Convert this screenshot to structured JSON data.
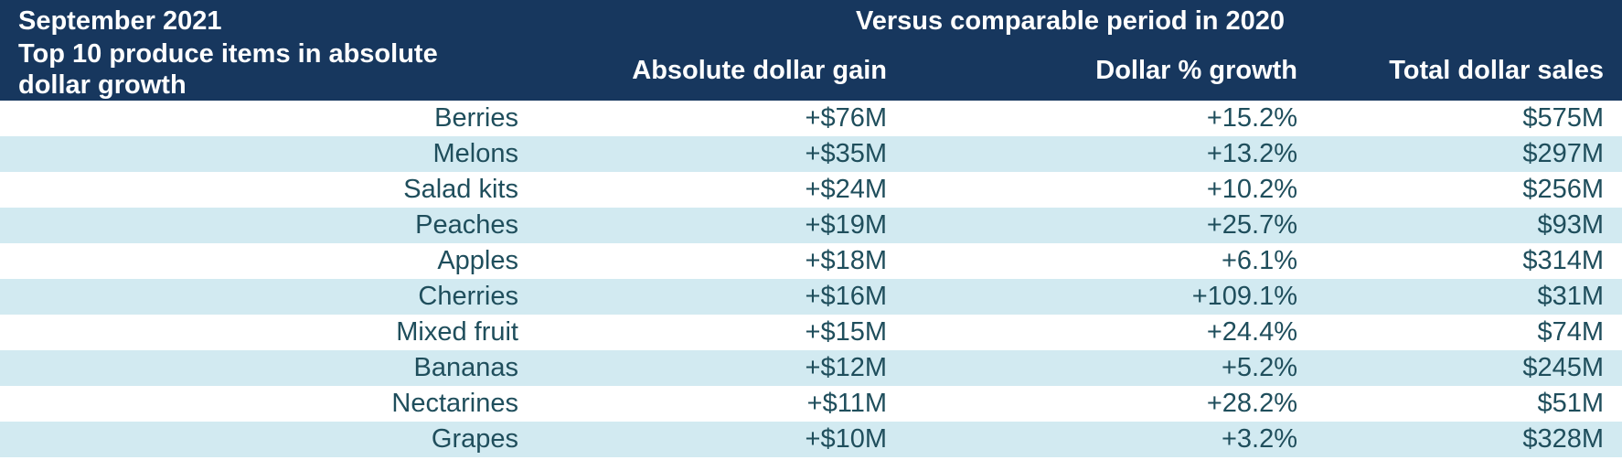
{
  "chart_data": {
    "type": "table",
    "period_label": "September 2021",
    "title": "Top 10 produce items in absolute dollar growth",
    "group_header": "Versus comparable period in 2020",
    "columns": [
      "Absolute dollar gain",
      "Dollar % growth",
      "Total dollar sales"
    ],
    "rows": [
      {
        "item": "Berries",
        "gain": "+$76M",
        "pct": "+15.2%",
        "total": "$575M"
      },
      {
        "item": "Melons",
        "gain": "+$35M",
        "pct": "+13.2%",
        "total": "$297M"
      },
      {
        "item": "Salad kits",
        "gain": "+$24M",
        "pct": "+10.2%",
        "total": "$256M"
      },
      {
        "item": "Peaches",
        "gain": "+$19M",
        "pct": "+25.7%",
        "total": "$93M"
      },
      {
        "item": "Apples",
        "gain": "+$18M",
        "pct": "+6.1%",
        "total": "$314M"
      },
      {
        "item": "Cherries",
        "gain": "+$16M",
        "pct": "+109.1%",
        "total": "$31M"
      },
      {
        "item": "Mixed fruit",
        "gain": "+$15M",
        "pct": "+24.4%",
        "total": "$74M"
      },
      {
        "item": "Bananas",
        "gain": "+$12M",
        "pct": "+5.2%",
        "total": "$245M"
      },
      {
        "item": "Nectarines",
        "gain": "+$11M",
        "pct": "+28.2%",
        "total": "$51M"
      },
      {
        "item": "Grapes",
        "gain": "+$10M",
        "pct": "+3.2%",
        "total": "$328M"
      }
    ]
  },
  "colors": {
    "header_bg": "#17375e",
    "header_text": "#ffffff",
    "band_bg": "#d2eaf1",
    "row_bg": "#ffffff",
    "body_text": "#1f4e5c"
  }
}
